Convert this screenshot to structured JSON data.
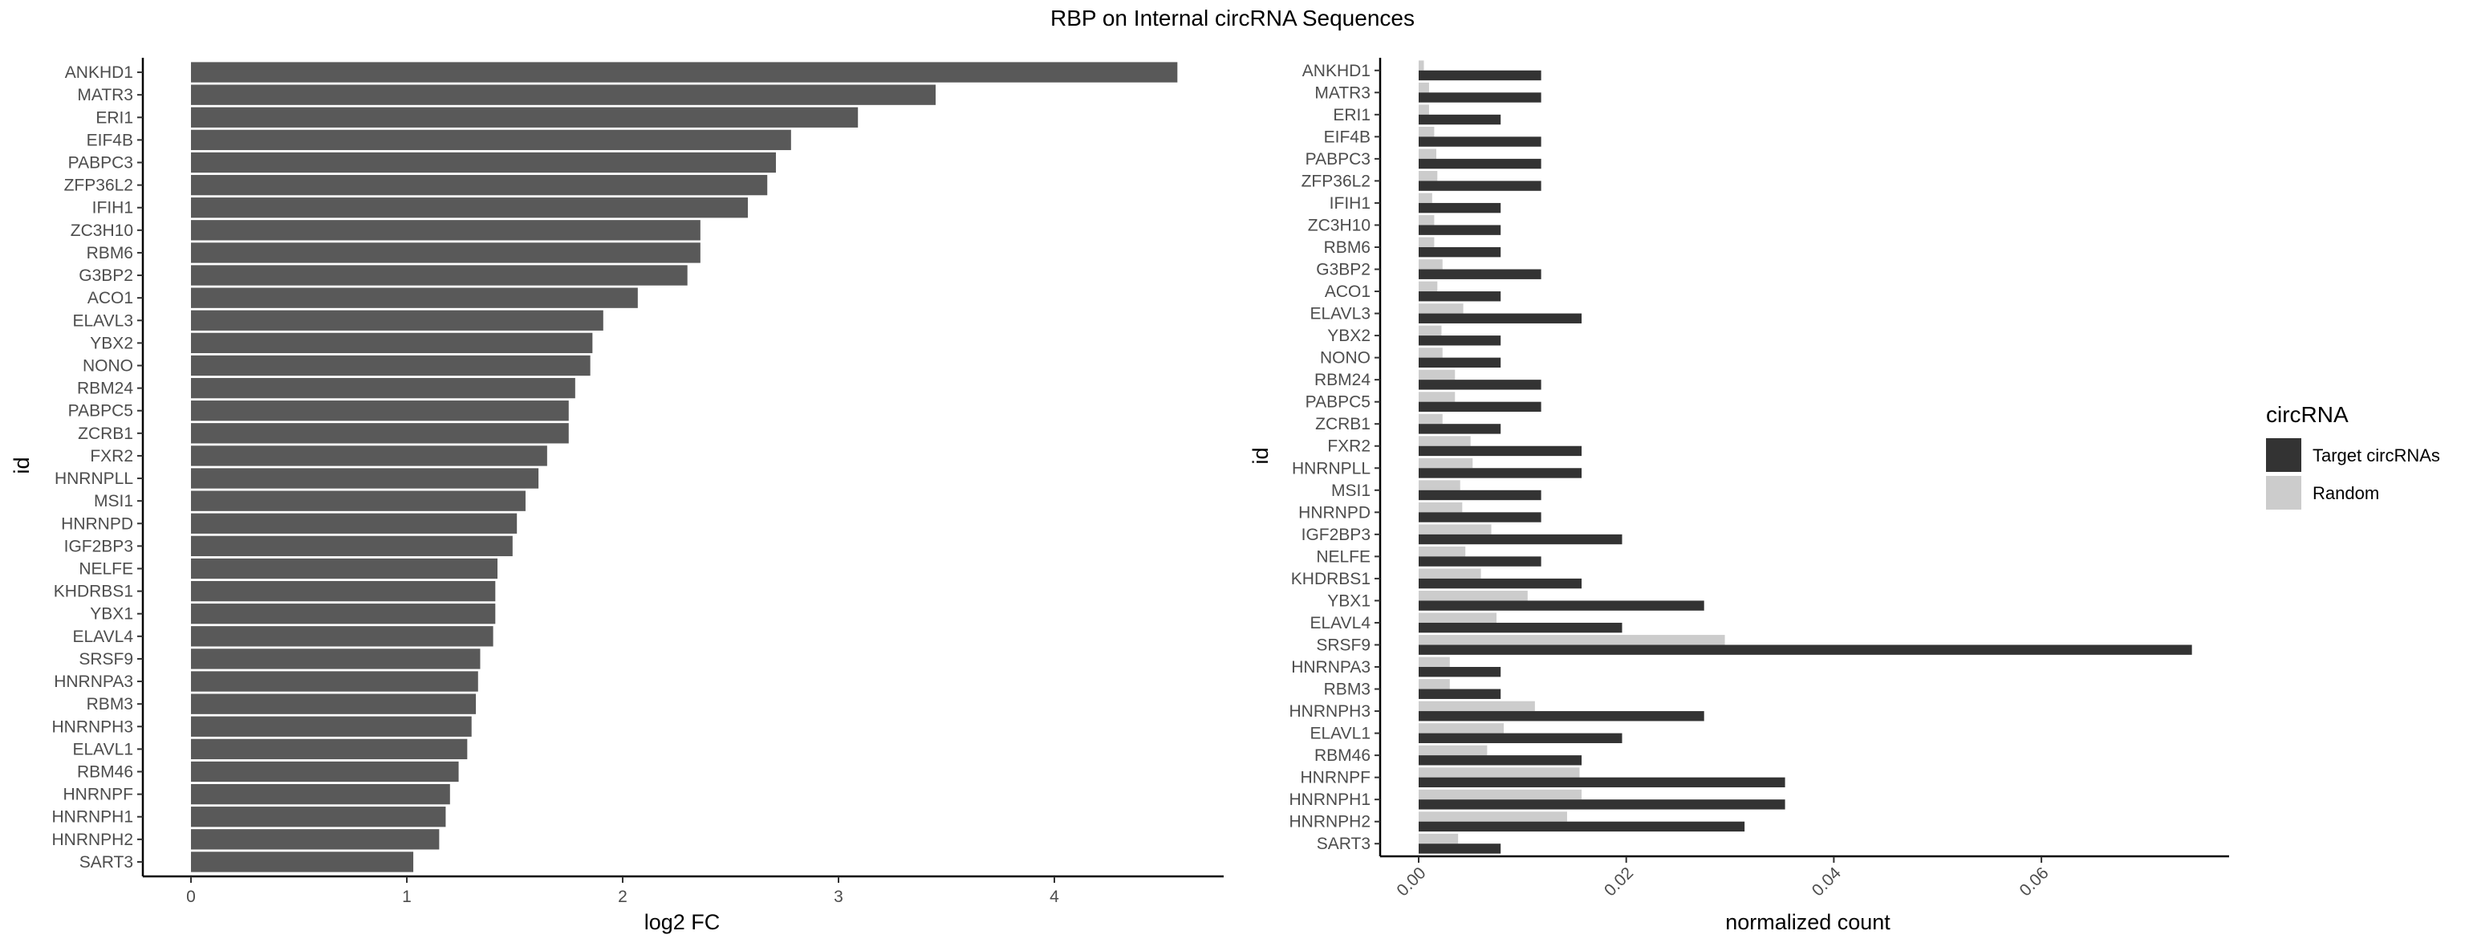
{
  "figure": {
    "title": "RBP on Internal circRNA Sequences"
  },
  "legend": {
    "title": "circRNA",
    "position": "right",
    "items": [
      {
        "label": "Target circRNAs",
        "color": "#333333"
      },
      {
        "label": "Random",
        "color": "#cccccc"
      }
    ]
  },
  "chart_data": [
    {
      "type": "bar",
      "orientation": "horizontal",
      "xlabel": "log2 FC",
      "ylabel": "id",
      "xlim": [
        0,
        4.6
      ],
      "xticks": [
        "0",
        "1",
        "2",
        "3",
        "4"
      ],
      "grid": false,
      "color": "#595959",
      "categories": [
        "ANKHD1",
        "MATR3",
        "ERI1",
        "EIF4B",
        "PABPC3",
        "ZFP36L2",
        "IFIH1",
        "ZC3H10",
        "RBM6",
        "G3BP2",
        "ACO1",
        "ELAVL3",
        "YBX2",
        "NONO",
        "RBM24",
        "PABPC5",
        "ZCRB1",
        "FXR2",
        "HNRNPLL",
        "MSI1",
        "HNRNPD",
        "IGF2BP3",
        "NELFE",
        "KHDRBS1",
        "YBX1",
        "ELAVL4",
        "SRSF9",
        "HNRNPA3",
        "RBM3",
        "HNRNPH3",
        "ELAVL1",
        "RBM46",
        "HNRNPF",
        "HNRNPH1",
        "HNRNPH2",
        "SART3"
      ],
      "values": [
        4.57,
        3.45,
        3.09,
        2.78,
        2.71,
        2.67,
        2.58,
        2.36,
        2.36,
        2.3,
        2.07,
        1.91,
        1.86,
        1.85,
        1.78,
        1.75,
        1.75,
        1.65,
        1.61,
        1.55,
        1.51,
        1.49,
        1.42,
        1.41,
        1.41,
        1.4,
        1.34,
        1.33,
        1.32,
        1.3,
        1.28,
        1.24,
        1.2,
        1.18,
        1.15,
        1.03
      ]
    },
    {
      "type": "bar",
      "orientation": "horizontal",
      "grouped": true,
      "xlabel": "normalized count",
      "ylabel": "id",
      "xlim": [
        -0.004,
        0.078
      ],
      "xticks": [
        "0.00",
        "0.02",
        "0.04",
        "0.06"
      ],
      "grid": false,
      "categories": [
        "ANKHD1",
        "MATR3",
        "ERI1",
        "EIF4B",
        "PABPC3",
        "ZFP36L2",
        "IFIH1",
        "ZC3H10",
        "RBM6",
        "G3BP2",
        "ACO1",
        "ELAVL3",
        "YBX2",
        "NONO",
        "RBM24",
        "PABPC5",
        "ZCRB1",
        "FXR2",
        "HNRNPLL",
        "MSI1",
        "HNRNPD",
        "IGF2BP3",
        "NELFE",
        "KHDRBS1",
        "YBX1",
        "ELAVL4",
        "SRSF9",
        "HNRNPA3",
        "RBM3",
        "HNRNPH3",
        "ELAVL1",
        "RBM46",
        "HNRNPF",
        "HNRNPH1",
        "HNRNPH2",
        "SART3"
      ],
      "series": [
        {
          "name": "Random",
          "color": "#cccccc",
          "values": [
            0.0005,
            0.001,
            0.001,
            0.0015,
            0.0017,
            0.0018,
            0.0013,
            0.0015,
            0.0015,
            0.0023,
            0.0018,
            0.0043,
            0.0022,
            0.0023,
            0.0035,
            0.0035,
            0.0023,
            0.005,
            0.0052,
            0.004,
            0.0042,
            0.007,
            0.0045,
            0.006,
            0.0105,
            0.0075,
            0.0295,
            0.003,
            0.003,
            0.0112,
            0.0082,
            0.0066,
            0.0155,
            0.0157,
            0.0143,
            0.0038
          ]
        },
        {
          "name": "Target circRNAs",
          "color": "#333333",
          "values": [
            0.0118,
            0.0118,
            0.0079,
            0.0118,
            0.0118,
            0.0118,
            0.0079,
            0.0079,
            0.0079,
            0.0118,
            0.0079,
            0.0157,
            0.0079,
            0.0079,
            0.0118,
            0.0118,
            0.0079,
            0.0157,
            0.0157,
            0.0118,
            0.0118,
            0.0196,
            0.0118,
            0.0157,
            0.0275,
            0.0196,
            0.0745,
            0.0079,
            0.0079,
            0.0275,
            0.0196,
            0.0157,
            0.0353,
            0.0353,
            0.0314,
            0.0079
          ]
        }
      ]
    }
  ]
}
